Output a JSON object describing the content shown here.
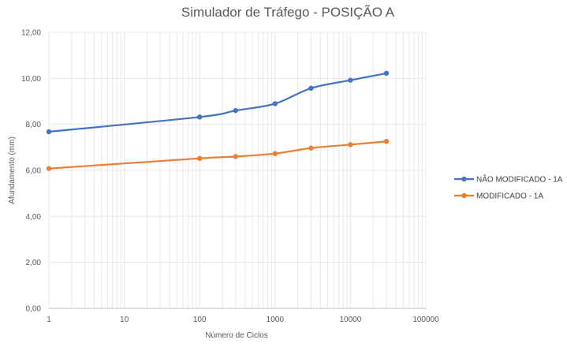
{
  "chart_data": {
    "type": "line",
    "title": "Simulador de Tráfego - POSIÇÃO A",
    "xlabel": "Número de Ciclos",
    "ylabel": "Afundamento (mm)",
    "xscale": "log",
    "xlim": [
      1,
      100000
    ],
    "ylim": [
      0,
      12
    ],
    "x_ticks": [
      "1",
      "10",
      "100",
      "1000",
      "10000",
      "100000"
    ],
    "y_ticks": [
      "0,00",
      "2,00",
      "4,00",
      "6,00",
      "8,00",
      "10,00",
      "12,00"
    ],
    "grid": "vertical minor and major, horizontal major",
    "legend_position": "right",
    "x": [
      1,
      100,
      300,
      1000,
      3000,
      10000,
      30000
    ],
    "series": [
      {
        "name": "NÃO MODIFICADO - 1A",
        "color": "#4472C4",
        "values": [
          7.68,
          8.32,
          8.6,
          8.9,
          9.57,
          9.92,
          10.22
        ]
      },
      {
        "name": "MODIFICADO - 1A",
        "color": "#ED7D31",
        "values": [
          6.08,
          6.52,
          6.6,
          6.73,
          6.97,
          7.12,
          7.26
        ]
      }
    ]
  },
  "colors": {
    "grid": "#e8e8e8",
    "axis": "#bfbfbf",
    "text": "#595959"
  }
}
